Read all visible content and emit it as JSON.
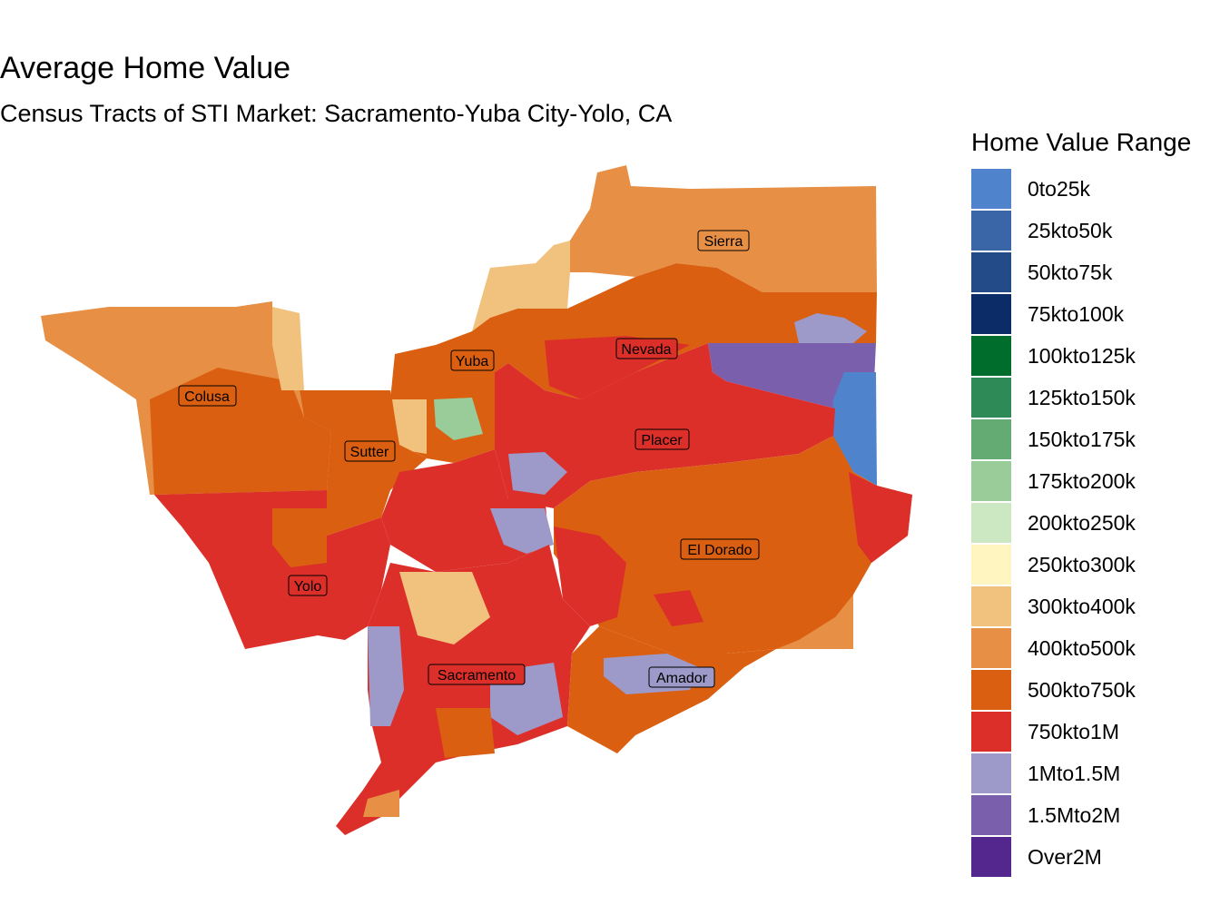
{
  "title": "Average Home Value",
  "subtitle": "Census Tracts of STI Market: Sacramento-Yuba City-Yolo, CA",
  "legend": {
    "title": "Home Value Range",
    "items": [
      {
        "label": "0to25k",
        "color": "#4f83cc"
      },
      {
        "label": "25kto50k",
        "color": "#3a66a8"
      },
      {
        "label": "50kto75k",
        "color": "#224b87"
      },
      {
        "label": "75kto100k",
        "color": "#0b2c66"
      },
      {
        "label": "100kto125k",
        "color": "#006d2c"
      },
      {
        "label": "125kto150k",
        "color": "#2e8b57"
      },
      {
        "label": "150kto175k",
        "color": "#63ab73"
      },
      {
        "label": "175kto200k",
        "color": "#99cc99"
      },
      {
        "label": "200kto250k",
        "color": "#cce8c2"
      },
      {
        "label": "250kto300k",
        "color": "#fff5c0"
      },
      {
        "label": "300kto400k",
        "color": "#f1c27d"
      },
      {
        "label": "400kto500k",
        "color": "#e68f45"
      },
      {
        "label": "500kto750k",
        "color": "#db5f11"
      },
      {
        "label": "750kto1M",
        "color": "#dc2f2a"
      },
      {
        "label": "1Mto1.5M",
        "color": "#9d99c8"
      },
      {
        "label": "1.5Mto2M",
        "color": "#7a5fad"
      },
      {
        "label": "Over2M",
        "color": "#54278f"
      }
    ]
  },
  "counties": [
    "Sierra",
    "Nevada",
    "Yuba",
    "Colusa",
    "Sutter",
    "Placer",
    "El Dorado",
    "Yolo",
    "Sacramento",
    "Amador"
  ]
}
